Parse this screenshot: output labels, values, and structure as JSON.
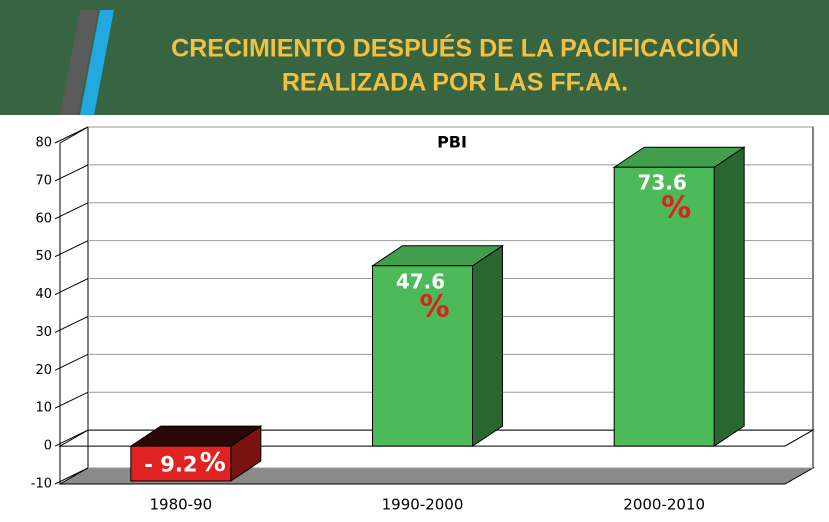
{
  "header": {
    "title": [
      "CRECIMIENTO DESPUÉS DE LA PACIFICACIÓN",
      "REALIZADA POR LAS FF.AA."
    ]
  },
  "chart_data": {
    "type": "bar3d",
    "title": "PBI",
    "categories": [
      "1980-90",
      "1990-2000",
      "2000-2010"
    ],
    "values": [
      -9.2,
      47.6,
      73.6
    ],
    "value_labels": [
      "- 9.2",
      "47.6",
      "73.6"
    ],
    "unit_label": "%",
    "colors": [
      "#e02222",
      "#4cba58",
      "#4cba58"
    ],
    "ylim": [
      -10,
      80
    ],
    "yticks": [
      -10,
      0,
      10,
      20,
      30,
      40,
      50,
      60,
      70,
      80
    ],
    "grid": true
  }
}
